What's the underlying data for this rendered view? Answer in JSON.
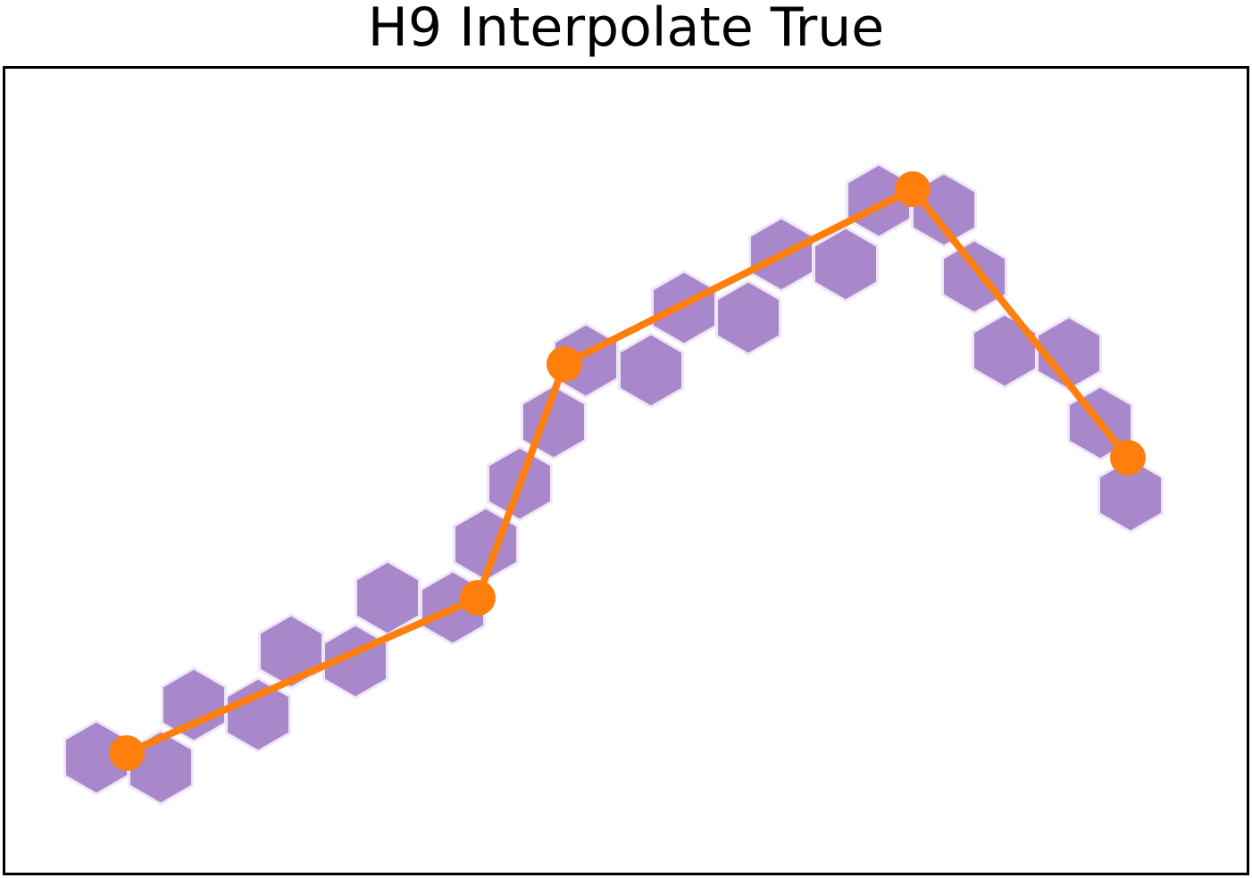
{
  "title": "H9 Interpolate True",
  "colors": {
    "hexagon_fill": "#a887cb",
    "hexagon_edge": "#efe6f7",
    "path_line": "#ff7f0e",
    "frame": "#000000",
    "background": "#ffffff"
  },
  "chart_data": {
    "type": "scatter",
    "title": "H9 Interpolate True",
    "xlabel": "",
    "ylabel": "",
    "axes_visible": false,
    "grid": false,
    "legend": "none",
    "series": [
      {
        "kind": "line-with-markers",
        "points": [
          {
            "x": 142,
            "y": 844
          },
          {
            "x": 535,
            "y": 670
          },
          {
            "x": 632,
            "y": 408
          },
          {
            "x": 1022,
            "y": 212
          },
          {
            "x": 1263,
            "y": 513
          }
        ]
      },
      {
        "kind": "hexagon-cells",
        "points": [
          {
            "x": 108,
            "y": 849
          },
          {
            "x": 180,
            "y": 860
          },
          {
            "x": 217,
            "y": 790
          },
          {
            "x": 289,
            "y": 801
          },
          {
            "x": 326,
            "y": 730
          },
          {
            "x": 398,
            "y": 741
          },
          {
            "x": 434,
            "y": 670
          },
          {
            "x": 507,
            "y": 681
          },
          {
            "x": 544,
            "y": 610
          },
          {
            "x": 582,
            "y": 542
          },
          {
            "x": 620,
            "y": 473
          },
          {
            "x": 656,
            "y": 404
          },
          {
            "x": 729,
            "y": 415
          },
          {
            "x": 766,
            "y": 345
          },
          {
            "x": 838,
            "y": 356
          },
          {
            "x": 875,
            "y": 285
          },
          {
            "x": 947,
            "y": 296
          },
          {
            "x": 984,
            "y": 225
          },
          {
            "x": 1057,
            "y": 235
          },
          {
            "x": 1091,
            "y": 310
          },
          {
            "x": 1125,
            "y": 393
          },
          {
            "x": 1197,
            "y": 396
          },
          {
            "x": 1232,
            "y": 474
          },
          {
            "x": 1266,
            "y": 555
          }
        ]
      }
    ]
  }
}
